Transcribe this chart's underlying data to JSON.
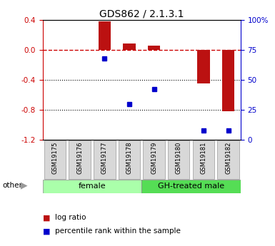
{
  "title": "GDS862 / 2.1.3.1",
  "samples": [
    "GSM19175",
    "GSM19176",
    "GSM19177",
    "GSM19178",
    "GSM19179",
    "GSM19180",
    "GSM19181",
    "GSM19182"
  ],
  "log_ratio": [
    0.0,
    0.0,
    0.38,
    0.08,
    0.05,
    0.0,
    -0.45,
    -0.82
  ],
  "percentile_rank_vals": [
    null,
    null,
    0.68,
    0.3,
    0.42,
    null,
    0.08,
    0.08
  ],
  "groups": [
    {
      "label": "female",
      "start": 0,
      "end": 4,
      "color": "#aaffaa"
    },
    {
      "label": "GH-treated male",
      "start": 4,
      "end": 8,
      "color": "#55dd55"
    }
  ],
  "ylim": [
    -1.2,
    0.4
  ],
  "yticks_left": [
    -1.2,
    -0.8,
    -0.4,
    0.0,
    0.4
  ],
  "yticks_right": [
    0,
    25,
    50,
    75,
    100
  ],
  "bar_color": "#bb1111",
  "dot_color": "#0000cc",
  "zero_line_color": "#cc0000",
  "grid_color": "#000000",
  "bg_color": "#ffffff",
  "plot_bg": "#ffffff",
  "legend_bar_label": "log ratio",
  "legend_dot_label": "percentile rank within the sample",
  "other_label": "other",
  "bar_width": 0.5
}
